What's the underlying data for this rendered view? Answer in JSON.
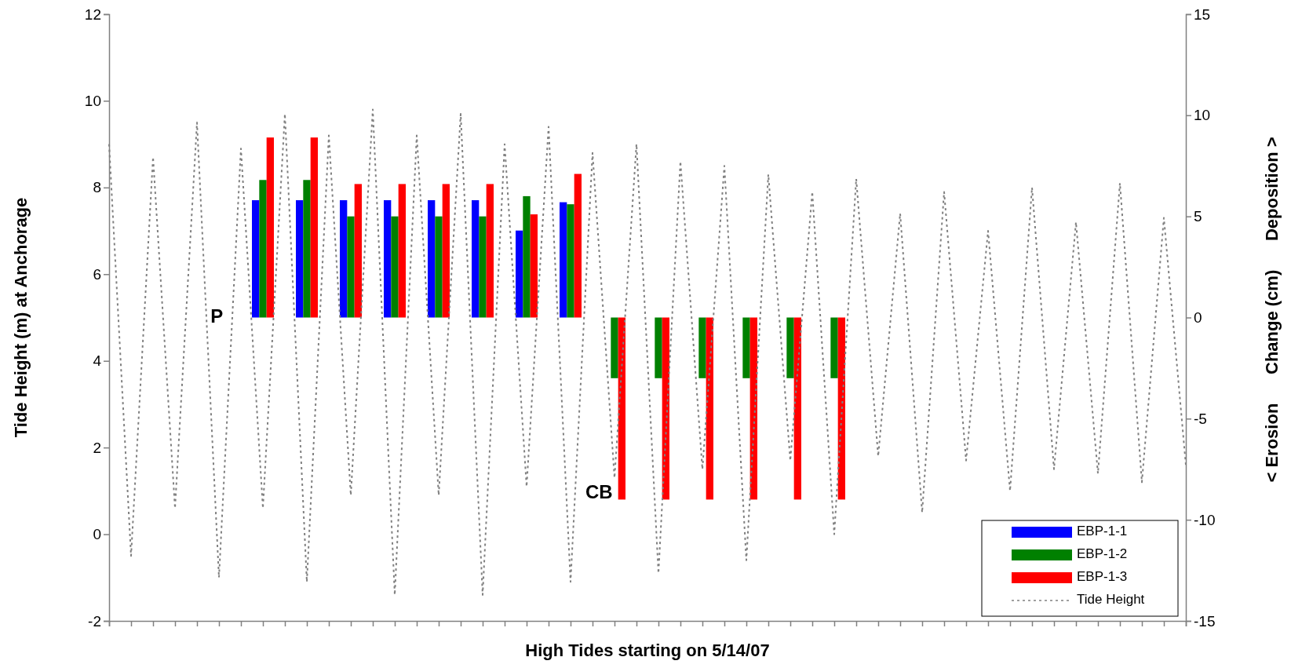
{
  "chart_data": {
    "type": "bar",
    "xlabel": "High Tides starting on 5/14/07",
    "ylabel": "Tide Height (m) at Anchorage",
    "y2label": "< Erosion      Change (cm)      Deposition >",
    "categories": [
      null,
      null,
      null,
      null,
      null,
      null,
      null,
      null,
      null,
      null,
      null,
      null,
      null,
      null,
      null,
      null,
      null,
      null,
      null,
      null,
      null,
      null,
      null,
      null,
      null,
      null,
      null,
      null,
      null,
      null,
      null,
      null,
      null,
      null,
      null,
      null,
      null,
      null,
      null,
      null,
      null,
      null,
      null,
      null,
      null,
      null,
      null,
      null,
      null,
      null
    ],
    "ylim": [
      -2,
      12
    ],
    "yticks": [
      -2,
      0,
      2,
      4,
      6,
      8,
      10,
      12
    ],
    "y2lim": [
      -15,
      15
    ],
    "y2ticks": [
      -15,
      -10,
      -5,
      0,
      5,
      10,
      15
    ],
    "tick_labels": "y",
    "legend": "bottom right",
    "line_style": "dotted",
    "series": [
      {
        "name": "EBP-1-1",
        "axis": "y2",
        "color": "#0000ff",
        "values": [
          null,
          null,
          null,
          null,
          null,
          null,
          null,
          5.8,
          null,
          5.8,
          null,
          5.8,
          null,
          5.8,
          null,
          5.8,
          null,
          5.8,
          null,
          4.3,
          null,
          5.7,
          null,
          null,
          null,
          null,
          null,
          null,
          null,
          null,
          null,
          null,
          null,
          null,
          null,
          null,
          null,
          null,
          null,
          null,
          null,
          null,
          null,
          null,
          null,
          null,
          null,
          null,
          null,
          null
        ]
      },
      {
        "name": "EBP-1-2",
        "axis": "y2",
        "color": "#008000",
        "values": [
          null,
          null,
          null,
          null,
          null,
          null,
          null,
          6.8,
          null,
          6.8,
          null,
          5.0,
          null,
          5.0,
          null,
          5.0,
          null,
          5.0,
          null,
          6.0,
          null,
          5.6,
          null,
          -3,
          null,
          -3,
          null,
          -3,
          null,
          -3,
          null,
          -3,
          null,
          -3,
          null,
          null,
          null,
          null,
          null,
          null,
          null,
          null,
          null,
          null,
          null,
          null,
          null,
          null,
          null,
          null
        ]
      },
      {
        "name": "EBP-1-3",
        "axis": "y2",
        "color": "#ff0000",
        "values": [
          null,
          null,
          null,
          null,
          null,
          null,
          null,
          8.9,
          null,
          8.9,
          null,
          6.6,
          null,
          6.6,
          null,
          6.6,
          null,
          6.6,
          null,
          5.1,
          null,
          7.1,
          null,
          -9,
          null,
          -9,
          null,
          -9,
          null,
          -9,
          null,
          -9,
          null,
          -9,
          null,
          null,
          null,
          null,
          null,
          null,
          null,
          null,
          null,
          null,
          null,
          null,
          null,
          null,
          null,
          null
        ]
      },
      {
        "name": "Tide Height",
        "type": "line",
        "color": "#808080",
        "values": [
          9.0,
          -0.5,
          8.7,
          0.6,
          9.5,
          -1.0,
          8.9,
          0.6,
          9.7,
          -1.1,
          9.2,
          0.9,
          9.8,
          -1.4,
          9.2,
          0.9,
          9.7,
          -1.4,
          9.0,
          1.1,
          9.4,
          -1.1,
          8.8,
          1.3,
          9.0,
          -0.9,
          8.6,
          1.5,
          8.5,
          -0.6,
          8.3,
          1.7,
          7.9,
          0.0,
          8.2,
          1.8,
          7.4,
          0.5,
          7.9,
          1.7,
          7.0,
          1.0,
          8.0,
          1.5,
          7.2,
          1.4,
          8.1,
          1.2,
          7.3,
          1.6
        ]
      }
    ],
    "annotations": [
      "P",
      "CB"
    ]
  }
}
